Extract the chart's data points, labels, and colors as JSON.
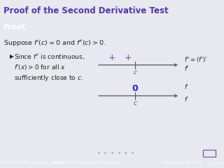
{
  "title": "Proof of the Second Derivative Test",
  "title_bg": "#aabbd4",
  "title_color": "#5533aa",
  "proof_label": "Proof.",
  "proof_bg": "#7700aa",
  "proof_color": "#ffffff",
  "body_bg": "#e8e8f0",
  "main_text": "Suppose $f\\prime(c) = 0$ and $f\\prime\\prime(c) > 0$.",
  "bullet_line1": "Since $f\\prime\\prime$ is continuous,",
  "bullet_line2": "$f\\prime(x) > 0$ for all $x$",
  "bullet_line3": "sufficiently close to $c$.",
  "footer_bg": "#9090c0",
  "footer_text": "V63.0121.021, Calculus I (NYU)",
  "footer_section": "Section 4.2  The Shapes of Curves",
  "footer_date": "November 16, 2010",
  "footer_page": "25 / 32",
  "purple_color": "#6644bb",
  "blue_color": "#2222cc",
  "dark_color": "#222222",
  "gray_color": "#555555"
}
